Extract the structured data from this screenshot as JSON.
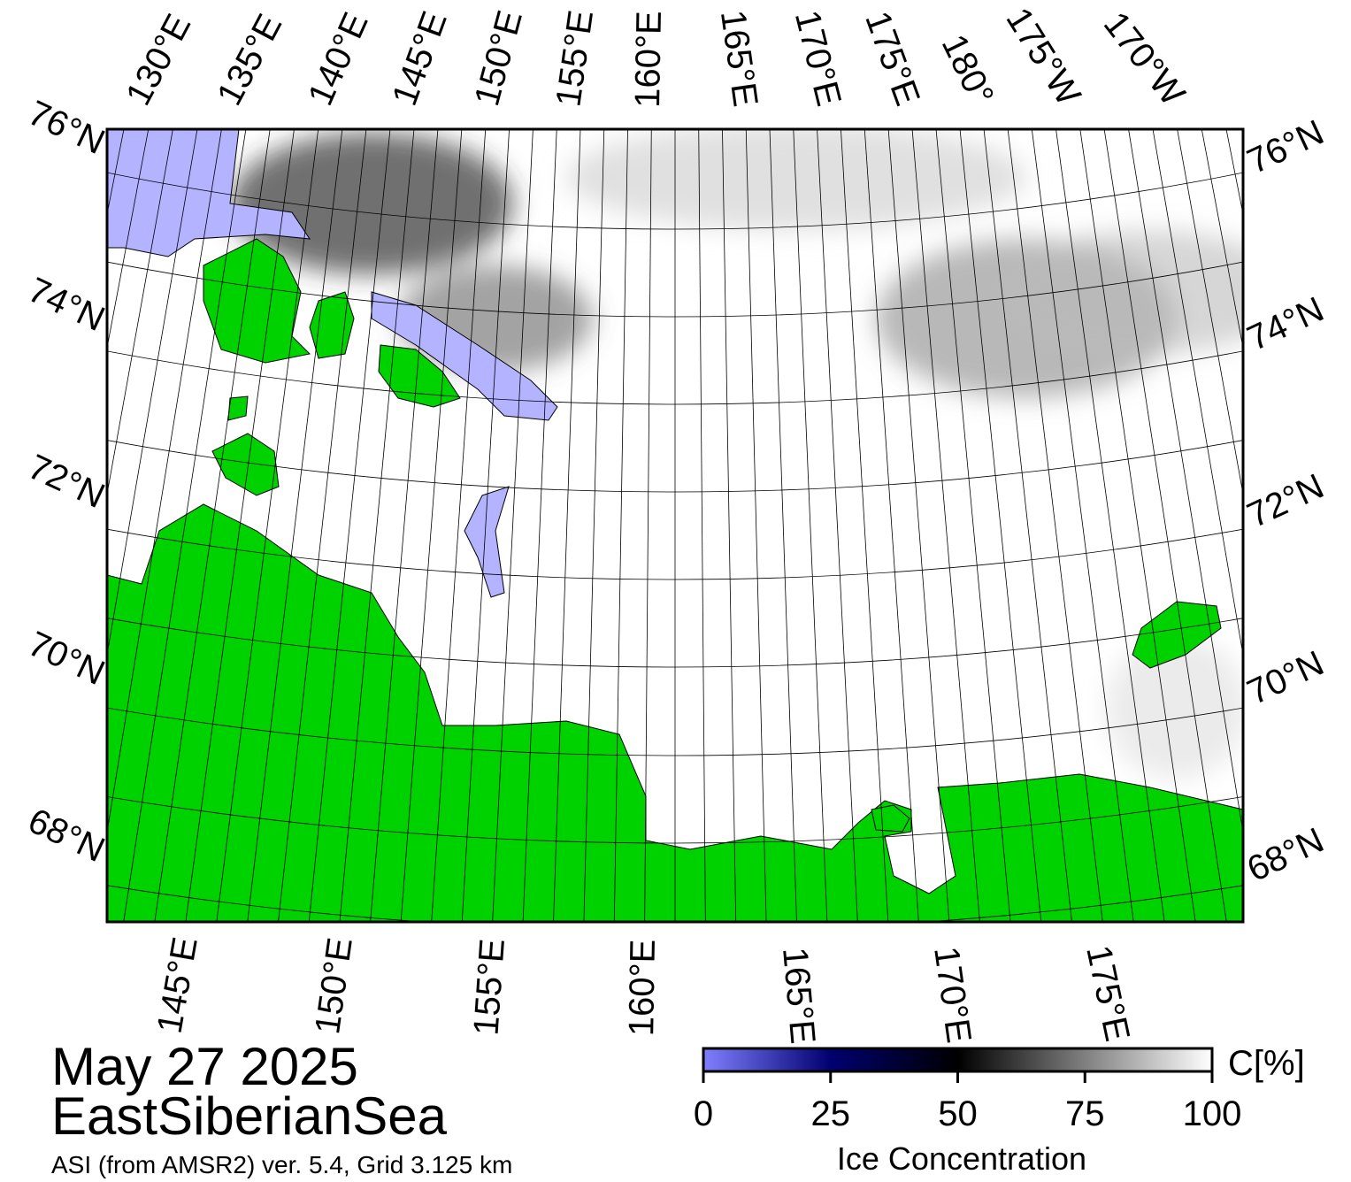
{
  "map": {
    "date": "May 27 2025",
    "region": "EastSiberianSea",
    "source": "ASI (from AMSR2) ver. 5.4,  Grid 3.125 km",
    "top_lon_labels": [
      "130°E",
      "135°E",
      "140°E",
      "145°E",
      "150°E",
      "155°E",
      "160°E",
      "165°E",
      "170°E",
      "175°E",
      "180°",
      "175°W",
      "170°W"
    ],
    "bottom_lon_labels": [
      "145°E",
      "150°E",
      "155°E",
      "160°E",
      "165°E",
      "170°E",
      "175°E"
    ],
    "left_lat_labels": [
      "76°N",
      "74°N",
      "72°N",
      "70°N",
      "68°N"
    ],
    "right_lat_labels": [
      "76°N",
      "74°N",
      "72°N",
      "70°N",
      "68°N"
    ]
  },
  "colorbar": {
    "label": "Ice Concentration",
    "unit": "C[%]",
    "lim": [
      0,
      100
    ],
    "ticks": [
      0,
      25,
      50,
      75,
      100
    ]
  }
}
